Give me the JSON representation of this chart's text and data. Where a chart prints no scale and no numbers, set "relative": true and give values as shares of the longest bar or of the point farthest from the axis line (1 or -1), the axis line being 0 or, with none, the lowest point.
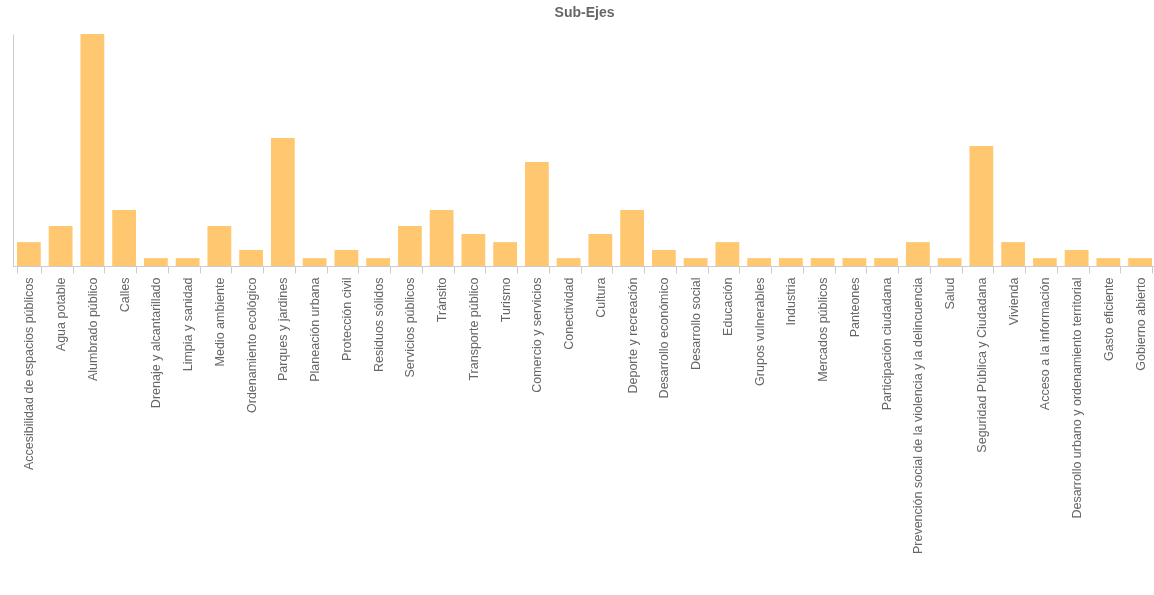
{
  "chart_data": {
    "type": "bar",
    "title": "Sub-Ejes",
    "relative": true,
    "categories": [
      "Accesibilidad de espacios públicos",
      "Agua potable",
      "Alumbrado público",
      "Calles",
      "Drenaje y alcantarillado",
      "Limpia y sanidad",
      "Medio ambiente",
      "Ordenamiento ecológico",
      "Parques y jardines",
      "Planeación urbana",
      "Protección civil",
      "Residuos sólidos",
      "Servicios públicos",
      "Tránsito",
      "Transporte público",
      "Turismo",
      "Comercio y servicios",
      "Conectividad",
      "Cultura",
      "Deporte y recreación",
      "Desarrollo económico",
      "Desarrollo social",
      "Educación",
      "Grupos vulnerables",
      "Industria",
      "Mercados públicos",
      "Panteones",
      "Participación ciudadana",
      "Prevención social de la violencia y la delincuencia",
      "Salud",
      "Seguridad Pública y Ciudadana",
      "Vivienda",
      "Acceso a la información",
      "Desarrollo urbano y ordenamiento territorial",
      "Gasto eficiente",
      "Gobierno abierto"
    ],
    "values": [
      0.103,
      0.172,
      1,
      0.241,
      0.034,
      0.034,
      0.172,
      0.069,
      0.552,
      0.034,
      0.069,
      0.034,
      0.172,
      0.241,
      0.138,
      0.103,
      0.448,
      0.034,
      0.138,
      0.241,
      0.069,
      0.034,
      0.103,
      0.034,
      0.034,
      0.034,
      0.034,
      0.034,
      0.103,
      0.034,
      0.517,
      0.103,
      0.034,
      0.069,
      0.034,
      0.034
    ],
    "color": "#ffc870"
  }
}
